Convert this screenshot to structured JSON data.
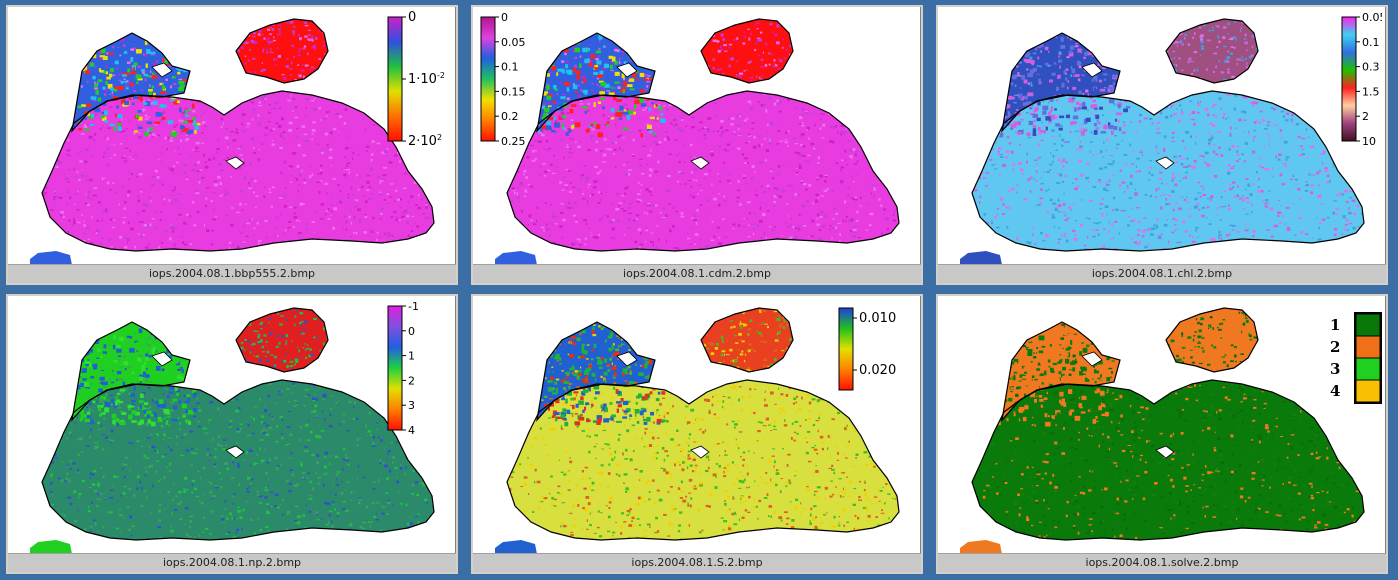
{
  "panels": [
    {
      "caption": "iops.2004.08.1.bbp555.2.bmp",
      "sea_color": "#e83ce0",
      "noise": [
        "#c040d8",
        "#f070f0",
        "#d020c8"
      ],
      "coast_colors": [
        "#3060e0",
        "#20c0f0",
        "#20d020",
        "#f0e000",
        "#ff2020"
      ],
      "azov_color": "#ff1010",
      "colorbar": {
        "colors": [
          "#d020c8",
          "#3050e0",
          "#20c040",
          "#e0e000",
          "#ff7000",
          "#ff1000"
        ],
        "labels": [
          "0",
          "1·10",
          "2·10"
        ],
        "label_sup": [
          "",
          "-2",
          "2"
        ]
      }
    },
    {
      "caption": "iops.2004.08.1.cdm.2.bmp",
      "sea_color": "#e83ce0",
      "noise": [
        "#c040d8",
        "#f070f0",
        "#d020c8"
      ],
      "coast_colors": [
        "#3060e0",
        "#20c0f0",
        "#20d020",
        "#f0e000",
        "#ff2020"
      ],
      "azov_color": "#ff1010",
      "colorbar": {
        "colors": [
          "#b01890",
          "#e040e0",
          "#2060e0",
          "#20c060",
          "#f0e000",
          "#ff8000",
          "#ff1000"
        ],
        "labels": [
          "0",
          "0.05",
          "0.1",
          "0.15",
          "0.2",
          "0.25"
        ],
        "label_sup": [
          "",
          "",
          "",
          "",
          "",
          ""
        ]
      }
    },
    {
      "caption": "iops.2004.08.1.chl.2.bmp",
      "sea_color": "#60c8f0",
      "noise": [
        "#d060e0",
        "#40a0e0",
        "#e070f0"
      ],
      "coast_colors": [
        "#3050c0",
        "#6070e0",
        "#d060e0"
      ],
      "azov_color": "#a05080",
      "colorbar": {
        "colors": [
          "#ff20f0",
          "#40d0f0",
          "#3070e0",
          "#20c000",
          "#ff2020",
          "#ffd0a0",
          "#a04080",
          "#401020"
        ],
        "labels": [
          "0.05",
          "0.1",
          "0.3",
          "1.5",
          "2",
          "10"
        ],
        "label_sup": [
          "",
          "",
          "",
          "",
          "",
          ""
        ]
      }
    },
    {
      "caption": "iops.2004.08.1.np.2.bmp",
      "sea_color": "#2a8a6a",
      "noise": [
        "#20c040",
        "#3050d0",
        "#40a060"
      ],
      "coast_colors": [
        "#20d020",
        "#30e030",
        "#2060d0"
      ],
      "azov_color": "#e02020",
      "colorbar": {
        "colors": [
          "#e020e0",
          "#8050e0",
          "#2060e0",
          "#20d040",
          "#e0e000",
          "#ff8000",
          "#ff1000"
        ],
        "labels": [
          "-1",
          "0",
          "1",
          "2",
          "3",
          "4"
        ],
        "label_sup": [
          "",
          "",
          "",
          "",
          "",
          ""
        ]
      }
    },
    {
      "caption": "iops.2004.08.1.S.2.bmp",
      "sea_color": "#d8e040",
      "noise": [
        "#f0d000",
        "#40c020",
        "#e06020"
      ],
      "coast_colors": [
        "#2060d0",
        "#20b040",
        "#e03020"
      ],
      "azov_color": "#e84020",
      "colorbar": {
        "colors": [
          "#2040e0",
          "#20c020",
          "#e0e000",
          "#ff8000",
          "#ff1000"
        ],
        "labels": [
          "0.010",
          "0.020"
        ],
        "label_sup": [
          "",
          ""
        ]
      }
    },
    {
      "caption": "iops.2004.08.1.solve.2.bmp",
      "sea_color": "#0a7a0a",
      "noise": [
        "#f07820",
        "#0a6a0a",
        "#108010"
      ],
      "coast_colors": [
        "#f07820",
        "#0a7a0a"
      ],
      "azov_color": "#f07820",
      "legend": {
        "items": [
          {
            "num": "1",
            "color": "#087808"
          },
          {
            "num": "2",
            "color": "#f07018"
          },
          {
            "num": "3",
            "color": "#20d020"
          },
          {
            "num": "4",
            "color": "#f8c000"
          }
        ]
      }
    }
  ]
}
